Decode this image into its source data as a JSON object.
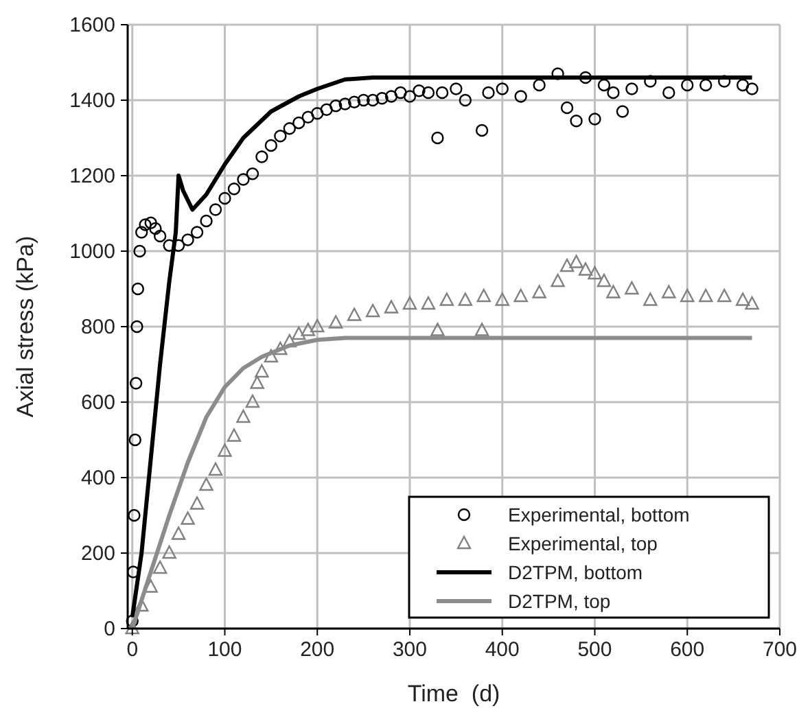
{
  "chart_data": {
    "type": "scatter",
    "xlabel": "Time  (d)",
    "ylabel": "Axial stress (kPa)",
    "xlim": [
      -5,
      700
    ],
    "xticks": [
      0,
      100,
      200,
      300,
      400,
      500,
      600,
      700
    ],
    "ylim": [
      0,
      1600
    ],
    "yticks": [
      0,
      200,
      400,
      600,
      800,
      1000,
      1200,
      1400,
      1600
    ],
    "grid": true,
    "legend": "bottom right",
    "series": [
      {
        "name": "Experimental, bottom",
        "marker": "circle",
        "color": "#000000",
        "x": [
          0,
          1,
          2,
          3,
          4,
          5,
          6,
          8,
          10,
          14,
          20,
          25,
          30,
          40,
          50,
          60,
          70,
          80,
          90,
          100,
          110,
          120,
          130,
          140,
          150,
          160,
          170,
          180,
          190,
          200,
          210,
          220,
          230,
          240,
          250,
          260,
          270,
          280,
          290,
          300,
          310,
          320,
          330,
          335,
          350,
          360,
          378,
          385,
          400,
          420,
          440,
          460,
          470,
          480,
          490,
          500,
          510,
          520,
          530,
          540,
          560,
          580,
          600,
          620,
          640,
          660,
          670
        ],
        "values": [
          20,
          150,
          300,
          500,
          650,
          800,
          900,
          1000,
          1050,
          1070,
          1075,
          1060,
          1040,
          1015,
          1015,
          1030,
          1050,
          1080,
          1110,
          1140,
          1165,
          1190,
          1205,
          1250,
          1280,
          1305,
          1325,
          1340,
          1355,
          1365,
          1375,
          1385,
          1390,
          1395,
          1400,
          1400,
          1405,
          1410,
          1420,
          1410,
          1425,
          1420,
          1300,
          1420,
          1430,
          1400,
          1320,
          1420,
          1430,
          1410,
          1440,
          1470,
          1380,
          1345,
          1460,
          1350,
          1440,
          1420,
          1370,
          1430,
          1450,
          1420,
          1440,
          1440,
          1450,
          1440,
          1430
        ]
      },
      {
        "name": "Experimental, top",
        "marker": "triangle",
        "color": "#808080",
        "x": [
          0,
          10,
          20,
          30,
          40,
          50,
          60,
          70,
          80,
          90,
          100,
          110,
          120,
          130,
          135,
          140,
          150,
          160,
          170,
          180,
          190,
          200,
          220,
          240,
          260,
          280,
          300,
          320,
          330,
          340,
          360,
          378,
          380,
          400,
          420,
          440,
          460,
          470,
          480,
          490,
          500,
          510,
          520,
          540,
          560,
          580,
          600,
          620,
          640,
          660,
          670
        ],
        "values": [
          0,
          60,
          110,
          160,
          200,
          250,
          290,
          330,
          380,
          420,
          470,
          510,
          560,
          600,
          650,
          680,
          720,
          740,
          760,
          780,
          790,
          800,
          810,
          830,
          840,
          850,
          860,
          860,
          790,
          870,
          870,
          790,
          880,
          870,
          880,
          890,
          920,
          960,
          970,
          950,
          940,
          920,
          890,
          900,
          870,
          890,
          880,
          880,
          880,
          870,
          860
        ]
      },
      {
        "name": "D2TPM, bottom",
        "type": "line",
        "color": "#000000",
        "x": [
          0,
          10,
          20,
          30,
          40,
          47,
          50,
          55,
          65,
          80,
          100,
          120,
          150,
          180,
          200,
          230,
          260,
          670
        ],
        "values": [
          30,
          200,
          450,
          700,
          920,
          1050,
          1200,
          1160,
          1110,
          1150,
          1230,
          1300,
          1370,
          1410,
          1430,
          1455,
          1460,
          1460
        ]
      },
      {
        "name": "D2TPM, top",
        "type": "line",
        "color": "#8c8c8c",
        "x": [
          0,
          20,
          40,
          60,
          80,
          100,
          120,
          140,
          170,
          200,
          230,
          670
        ],
        "values": [
          0,
          150,
          300,
          440,
          560,
          640,
          690,
          720,
          750,
          765,
          770,
          770
        ]
      }
    ]
  }
}
